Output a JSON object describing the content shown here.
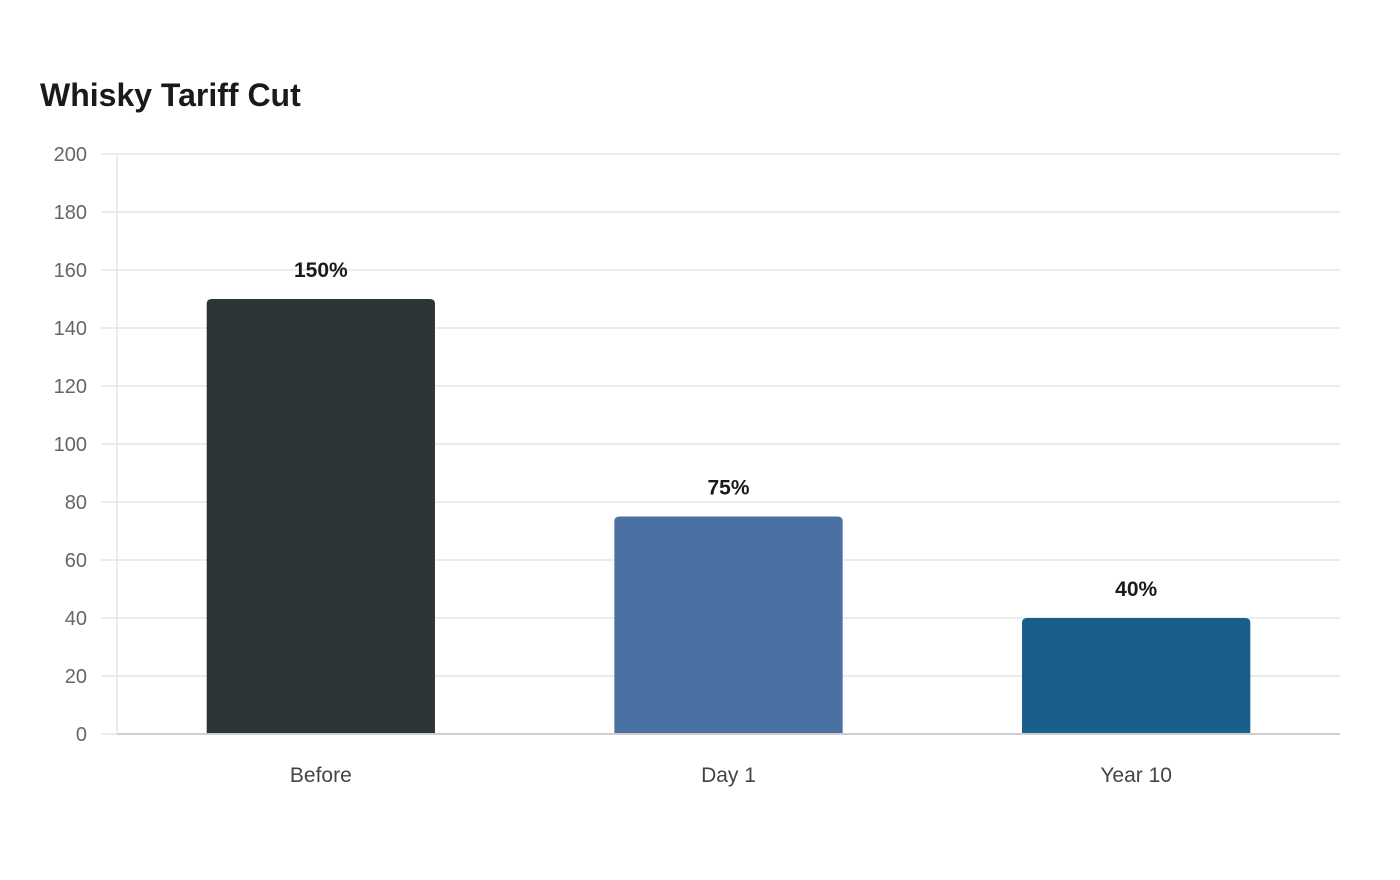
{
  "chart_data": {
    "type": "bar",
    "title": "Whisky Tariff Cut",
    "xlabel": "",
    "ylabel": "",
    "categories": [
      "Before",
      "Day 1",
      "Year 10"
    ],
    "values": [
      150,
      75,
      40
    ],
    "value_labels": [
      "150%",
      "75%",
      "40%"
    ],
    "colors": [
      "#2e3538",
      "#4b70a4",
      "#186089"
    ],
    "ylim": [
      0,
      200
    ],
    "yticks": [
      0,
      20,
      40,
      60,
      80,
      100,
      120,
      140,
      160,
      180,
      200
    ],
    "grid": true,
    "legend": "none"
  }
}
